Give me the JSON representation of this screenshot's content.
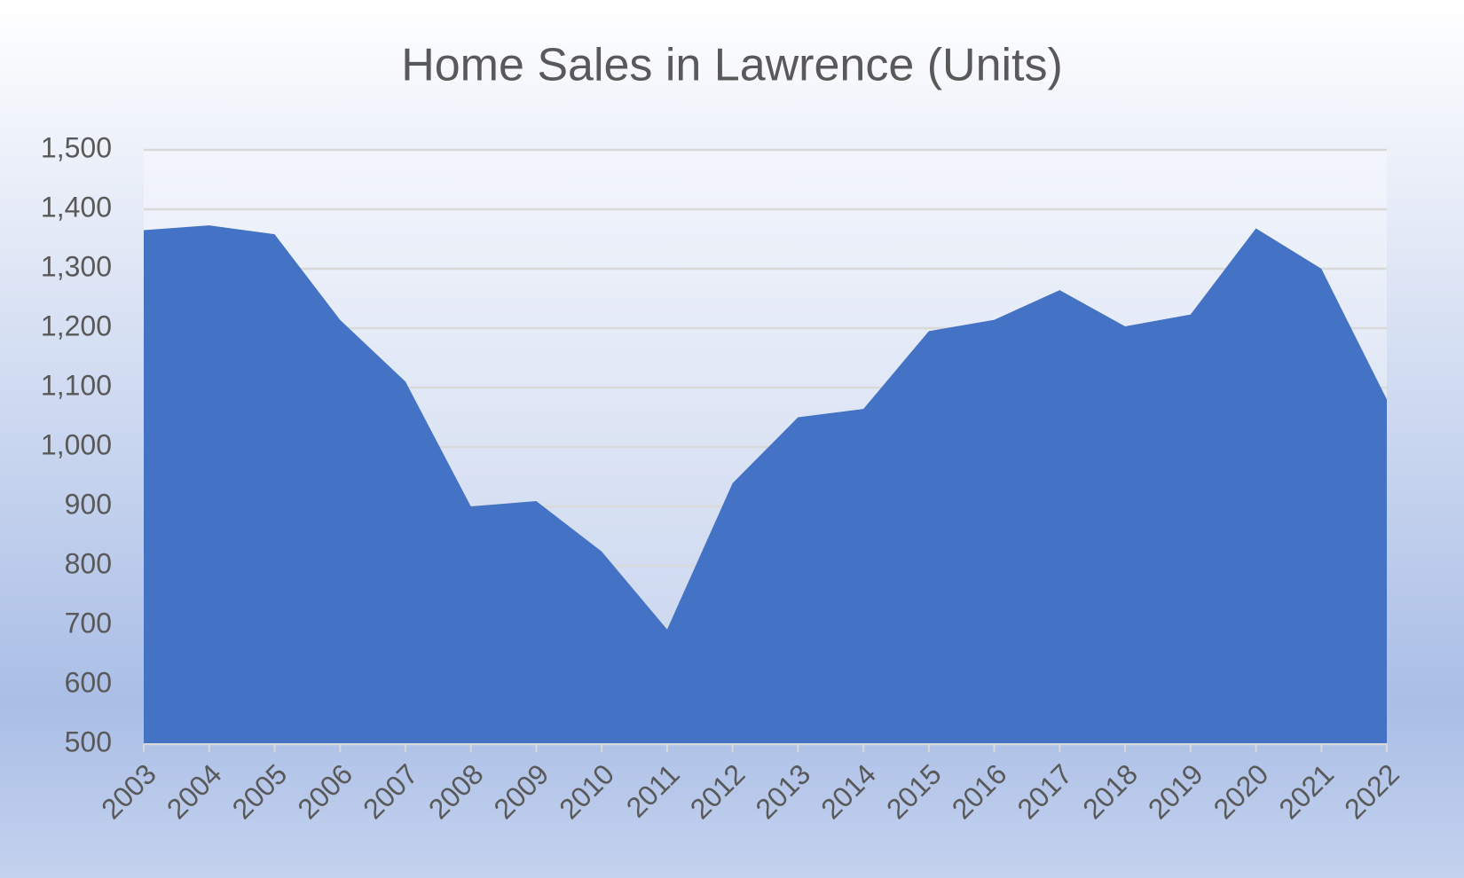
{
  "chart_data": {
    "type": "area",
    "title": "Home Sales in Lawrence (Units)",
    "categories": [
      "2003",
      "2004",
      "2005",
      "2006",
      "2007",
      "2008",
      "2009",
      "2010",
      "2011",
      "2012",
      "2013",
      "2014",
      "2015",
      "2016",
      "2017",
      "2018",
      "2019",
      "2020",
      "2021",
      "2022"
    ],
    "values": [
      1365,
      1373,
      1358,
      1214,
      1110,
      900,
      909,
      824,
      693,
      939,
      1050,
      1064,
      1195,
      1214,
      1264,
      1203,
      1223,
      1368,
      1300,
      1080
    ],
    "color": "#4472c4",
    "ylim": [
      500,
      1500
    ],
    "yticks": [
      500,
      600,
      700,
      800,
      900,
      {
        "value": 1000,
        "label": "1,000"
      },
      {
        "value": 1100,
        "label": "1,100"
      },
      {
        "value": 1200,
        "label": "1,200"
      },
      {
        "value": 1300,
        "label": "1,300"
      },
      {
        "value": 1400,
        "label": "1,400"
      },
      {
        "value": 1500,
        "label": "1,500"
      }
    ],
    "grid": true
  }
}
